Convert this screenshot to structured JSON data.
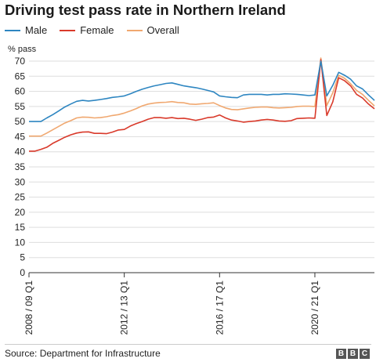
{
  "chart_data": {
    "type": "line",
    "title": "Driving test pass rate in Northern Ireland",
    "ylabel": "% pass",
    "xlabel": "",
    "ylim": [
      0,
      70
    ],
    "yticks": [
      0,
      5,
      10,
      15,
      20,
      25,
      30,
      35,
      40,
      45,
      50,
      55,
      60,
      65,
      70
    ],
    "x_tick_labels": [
      "2008 / 09 Q1",
      "2012 / 13 Q1",
      "2016 / 17 Q1",
      "2020 / 21 Q1"
    ],
    "x_tick_indices": [
      0,
      16,
      32,
      48
    ],
    "categories": [
      "2008/09 Q1",
      "2008/09 Q2",
      "2008/09 Q3",
      "2008/09 Q4",
      "2009/10 Q1",
      "2009/10 Q2",
      "2009/10 Q3",
      "2009/10 Q4",
      "2010/11 Q1",
      "2010/11 Q2",
      "2010/11 Q3",
      "2010/11 Q4",
      "2011/12 Q1",
      "2011/12 Q2",
      "2011/12 Q3",
      "2011/12 Q4",
      "2012/13 Q1",
      "2012/13 Q2",
      "2012/13 Q3",
      "2012/13 Q4",
      "2013/14 Q1",
      "2013/14 Q2",
      "2013/14 Q3",
      "2013/14 Q4",
      "2014/15 Q1",
      "2014/15 Q2",
      "2014/15 Q3",
      "2014/15 Q4",
      "2015/16 Q1",
      "2015/16 Q2",
      "2015/16 Q3",
      "2015/16 Q4",
      "2016/17 Q1",
      "2016/17 Q2",
      "2016/17 Q3",
      "2016/17 Q4",
      "2017/18 Q1",
      "2017/18 Q2",
      "2017/18 Q3",
      "2017/18 Q4",
      "2018/19 Q1",
      "2018/19 Q2",
      "2018/19 Q3",
      "2018/19 Q4",
      "2019/20 Q1",
      "2019/20 Q2",
      "2019/20 Q3",
      "2019/20 Q4",
      "2020/21 Q1",
      "2020/21 Q2",
      "2020/21 Q3",
      "2020/21 Q4",
      "2021/22 Q1",
      "2021/22 Q2",
      "2021/22 Q3",
      "2021/22 Q4",
      "2022/23 Q1",
      "2022/23 Q2",
      "2022/23 Q3"
    ],
    "series": [
      {
        "name": "Male",
        "color": "#2e86c1",
        "values": [
          50,
          50,
          50,
          51.2,
          52.3,
          53.5,
          54.8,
          55.8,
          56.7,
          57,
          56.8,
          57,
          57.3,
          57.6,
          58,
          58.2,
          58.5,
          59.2,
          60,
          60.7,
          61.3,
          61.8,
          62.2,
          62.6,
          62.8,
          62.3,
          61.8,
          61.5,
          61.2,
          60.8,
          60.3,
          59.8,
          58.5,
          58.2,
          58,
          57.9,
          58.8,
          59,
          59,
          59,
          58.8,
          59,
          59,
          59.2,
          59.1,
          59,
          58.8,
          58.6,
          58.8,
          70,
          58.5,
          62,
          66.3,
          65.3,
          64,
          61.8,
          60.8,
          58.8,
          57
        ]
      },
      {
        "name": "Female",
        "color": "#d93a2b",
        "values": [
          40.2,
          40.2,
          40.8,
          41.5,
          42.8,
          43.8,
          44.8,
          45.6,
          46.2,
          46.5,
          46.6,
          46.1,
          46.1,
          46,
          46.5,
          47.2,
          47.4,
          48.5,
          49.3,
          50,
          50.8,
          51.3,
          51.3,
          51.1,
          51.3,
          51,
          51.1,
          50.8,
          50.4,
          50.8,
          51.3,
          51.5,
          52.2,
          51.2,
          50.5,
          50.2,
          49.8,
          50,
          50.2,
          50.5,
          50.7,
          50.5,
          50.2,
          50.1,
          50.3,
          51,
          51.1,
          51.2,
          51.1,
          70.5,
          52,
          56.5,
          64.5,
          63.5,
          61.8,
          59,
          57.8,
          55.8,
          54.2
        ]
      },
      {
        "name": "Overall",
        "color": "#f0a870",
        "values": [
          45.2,
          45.2,
          45.2,
          46.2,
          47.3,
          48.4,
          49.5,
          50.3,
          51.2,
          51.5,
          51.4,
          51.2,
          51.3,
          51.6,
          52,
          52.3,
          52.8,
          53.5,
          54.3,
          55.2,
          55.8,
          56.1,
          56.3,
          56.4,
          56.6,
          56.3,
          56.2,
          55.8,
          55.7,
          55.9,
          56,
          56.2,
          55.3,
          54.5,
          54,
          53.9,
          54.2,
          54.5,
          54.7,
          54.8,
          54.8,
          54.6,
          54.5,
          54.6,
          54.7,
          55,
          55.1,
          55.1,
          55,
          71,
          55.3,
          59.5,
          65.3,
          64.3,
          62.5,
          60.3,
          59,
          57,
          55.2
        ]
      }
    ]
  },
  "legend": [
    {
      "label": "Male",
      "color": "#2e86c1"
    },
    {
      "label": "Female",
      "color": "#d93a2b"
    },
    {
      "label": "Overall",
      "color": "#f0a870"
    }
  ],
  "footer": {
    "source": "Source: Department for Infrastructure",
    "logo_letters": [
      "B",
      "B",
      "C"
    ]
  }
}
